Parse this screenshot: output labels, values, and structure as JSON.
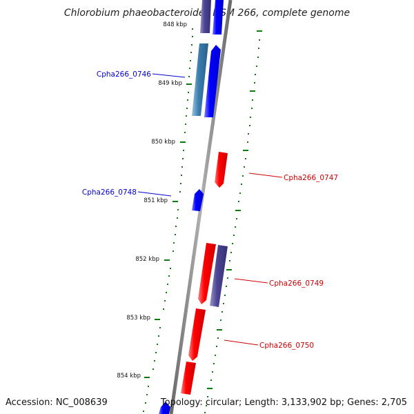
{
  "title": "Chlorobium phaeobacteroides DSM 266, complete genome",
  "accession": "Accession: NC_008639",
  "summary": "Topology: circular; Length: 3,133,902 bp; Genes: 2,705",
  "colors": {
    "backbone": "#888888",
    "tick": "#0a7a0a",
    "forward_gene": "#0000ff",
    "reverse_gene": "#ff0000",
    "feature_purple": "#4b4594",
    "feature_steel": "#3b7fb0",
    "label_forward": "#0000cc",
    "label_reverse": "#cc0000"
  },
  "kbp_ticks": [
    "848 kbp",
    "849 kbp",
    "850 kbp",
    "851 kbp",
    "852 kbp",
    "853 kbp",
    "854 kbp"
  ],
  "labels": {
    "cpha0746": "Cpha266_0746",
    "cpha0747": "Cpha266_0747",
    "cpha0748": "Cpha266_0748",
    "cpha0749": "Cpha266_0749",
    "cpha0750": "Cpha266_0750"
  }
}
